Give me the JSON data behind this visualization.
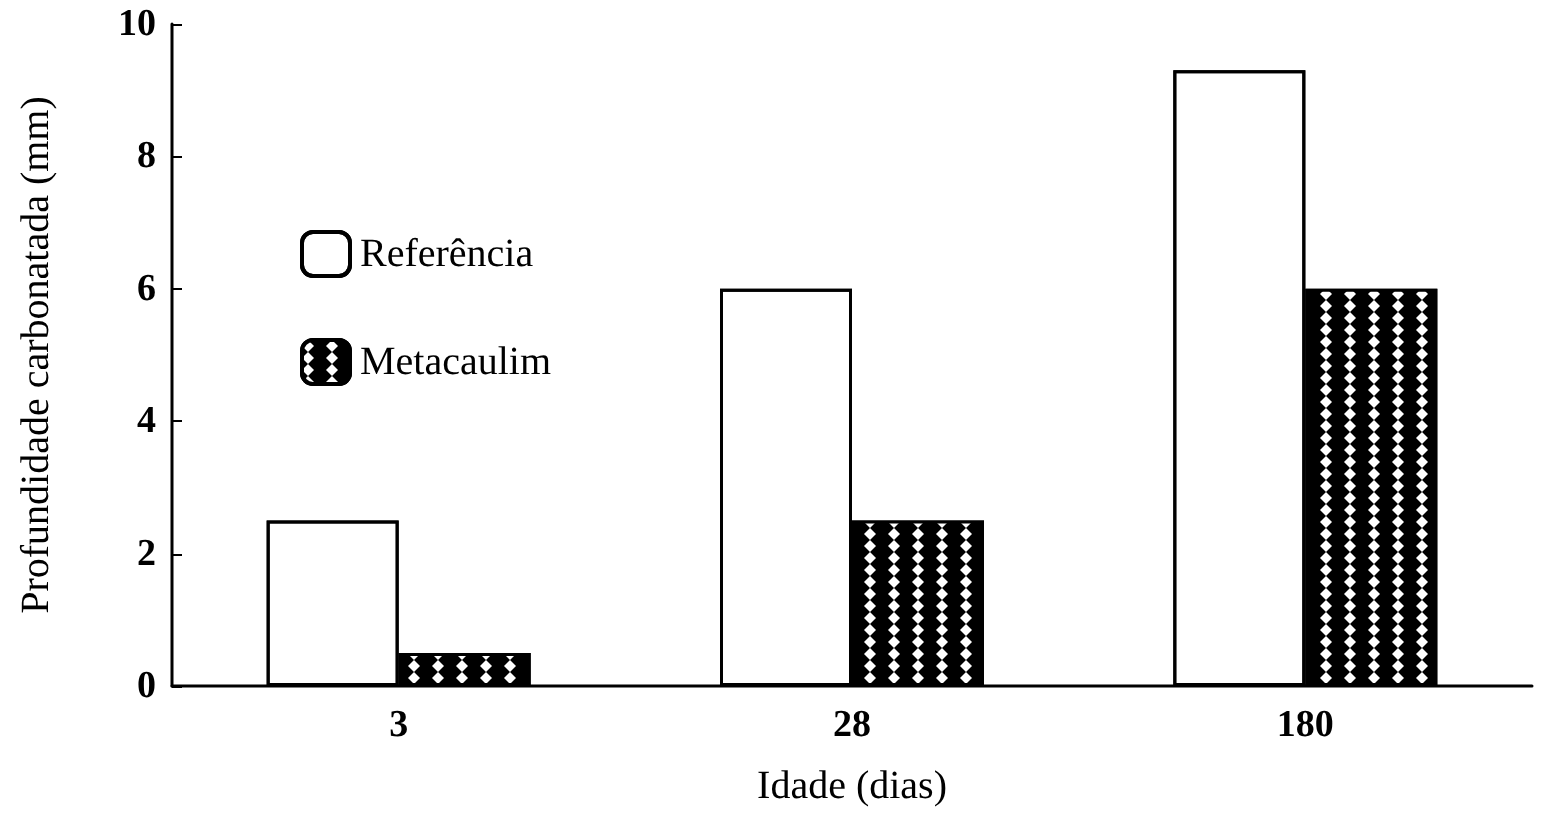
{
  "chart_data": {
    "type": "bar",
    "xlabel": "Idade (dias)",
    "ylabel": "Profundidade carbonatada (mm)",
    "categories": [
      "3",
      "28",
      "180"
    ],
    "series": [
      {
        "name": "Referência",
        "color": "#ffffff",
        "values": [
          2.5,
          6.0,
          9.3
        ]
      },
      {
        "name": "Metacaulim",
        "color": "#000000",
        "values": [
          0.5,
          2.5,
          6.0
        ]
      }
    ],
    "ylim": [
      0,
      10
    ],
    "yticks": [
      0,
      2,
      4,
      6,
      8,
      10
    ],
    "grid": false,
    "legend": "top left"
  }
}
